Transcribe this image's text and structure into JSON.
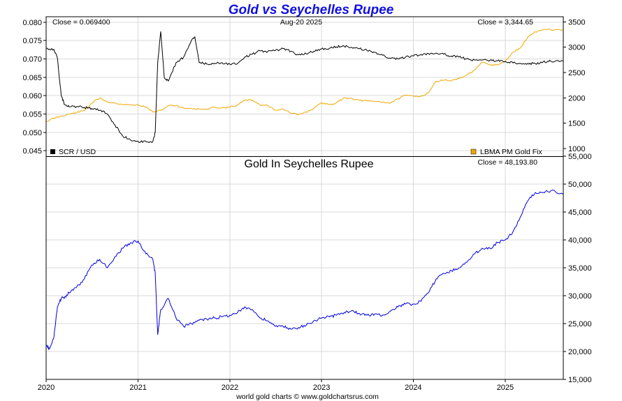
{
  "chart_data": [
    {
      "type": "line",
      "title": "Gold vs Seychelles Rupee",
      "date_label": "Aug-20  2025",
      "close_left": "Close = 0.069400",
      "close_right": "Close = 3,344.65",
      "x_tick_labels": [
        "2020",
        "2021",
        "2022",
        "2023",
        "2024",
        "2025"
      ],
      "y_left_ticks": [
        "0.080",
        "0.075",
        "0.070",
        "0.065",
        "0.060",
        "0.055",
        "0.050",
        "0.045"
      ],
      "y_left_lim": [
        0.0435,
        0.0815
      ],
      "y_right_ticks": [
        "3500",
        "3000",
        "2500",
        "2000",
        "1500",
        "1000"
      ],
      "y_right_lim": [
        850,
        3600
      ],
      "x_range": [
        "2020-01-01",
        "2025-08-20"
      ],
      "grid": true,
      "legend": [
        {
          "name": "SCR / USD",
          "color": "#000000",
          "position": "bottom-left"
        },
        {
          "name": "LBMA PM Gold Fix",
          "color": "#f0a800",
          "position": "bottom-right"
        }
      ],
      "series": [
        {
          "name": "SCR / USD",
          "axis": "left",
          "color": "#000000",
          "x": [
            "2020-01-01",
            "2020-02-01",
            "2020-02-15",
            "2020-03-01",
            "2020-03-15",
            "2020-04-01",
            "2020-05-01",
            "2020-06-01",
            "2020-07-01",
            "2020-08-01",
            "2020-09-01",
            "2020-10-01",
            "2020-11-01",
            "2020-12-01",
            "2021-01-01",
            "2021-02-01",
            "2021-03-01",
            "2021-03-10",
            "2021-03-20",
            "2021-04-01",
            "2021-04-15",
            "2021-05-01",
            "2021-06-01",
            "2021-07-01",
            "2021-08-01",
            "2021-08-15",
            "2021-09-01",
            "2021-10-01",
            "2021-11-01",
            "2021-12-01",
            "2022-01-01",
            "2022-02-01",
            "2022-03-01",
            "2022-04-01",
            "2022-05-01",
            "2022-06-01",
            "2022-07-01",
            "2022-08-01",
            "2022-09-01",
            "2022-10-01",
            "2022-11-01",
            "2022-12-01",
            "2023-01-01",
            "2023-02-01",
            "2023-03-01",
            "2023-04-01",
            "2023-05-01",
            "2023-06-01",
            "2023-07-01",
            "2023-08-01",
            "2023-09-01",
            "2023-10-01",
            "2023-11-01",
            "2023-12-01",
            "2024-01-01",
            "2024-02-01",
            "2024-03-01",
            "2024-04-01",
            "2024-05-01",
            "2024-06-01",
            "2024-07-01",
            "2024-08-01",
            "2024-09-01",
            "2024-10-01",
            "2024-11-01",
            "2024-12-01",
            "2025-01-01",
            "2025-02-01",
            "2025-03-01",
            "2025-04-01",
            "2025-05-01",
            "2025-06-01",
            "2025-07-01",
            "2025-08-20"
          ],
          "values": [
            0.0729,
            0.0726,
            0.0701,
            0.06,
            0.0575,
            0.057,
            0.057,
            0.0568,
            0.0565,
            0.056,
            0.055,
            0.052,
            0.049,
            0.048,
            0.0475,
            0.0475,
            0.0475,
            0.05,
            0.069,
            0.0775,
            0.065,
            0.064,
            0.069,
            0.0705,
            0.075,
            0.076,
            0.069,
            0.0686,
            0.0688,
            0.069,
            0.0686,
            0.0688,
            0.0705,
            0.0713,
            0.0722,
            0.072,
            0.0723,
            0.0728,
            0.0721,
            0.0711,
            0.0714,
            0.0721,
            0.0727,
            0.0729,
            0.0733,
            0.0735,
            0.0732,
            0.0728,
            0.0723,
            0.0718,
            0.071,
            0.0702,
            0.07,
            0.0705,
            0.0708,
            0.0712,
            0.0715,
            0.0716,
            0.0713,
            0.0708,
            0.0705,
            0.07,
            0.0697,
            0.0697,
            0.0696,
            0.0695,
            0.0693,
            0.0689,
            0.0688,
            0.0688,
            0.0687,
            0.0692,
            0.0694,
            0.0694
          ]
        },
        {
          "name": "LBMA PM Gold Fix",
          "axis": "right",
          "color": "#f0a800",
          "x": [
            "2020-01-01",
            "2020-02-01",
            "2020-03-01",
            "2020-04-01",
            "2020-05-01",
            "2020-06-01",
            "2020-07-01",
            "2020-08-01",
            "2020-09-01",
            "2020-10-01",
            "2020-11-01",
            "2020-12-01",
            "2021-01-01",
            "2021-02-01",
            "2021-03-01",
            "2021-04-01",
            "2021-05-01",
            "2021-06-01",
            "2021-07-01",
            "2021-08-01",
            "2021-09-01",
            "2021-10-01",
            "2021-11-01",
            "2021-12-01",
            "2022-01-01",
            "2022-02-01",
            "2022-03-01",
            "2022-04-01",
            "2022-05-01",
            "2022-06-01",
            "2022-07-01",
            "2022-08-01",
            "2022-09-01",
            "2022-10-01",
            "2022-11-01",
            "2022-12-01",
            "2023-01-01",
            "2023-02-01",
            "2023-03-01",
            "2023-04-01",
            "2023-05-01",
            "2023-06-01",
            "2023-07-01",
            "2023-08-01",
            "2023-09-01",
            "2023-10-01",
            "2023-11-01",
            "2023-12-01",
            "2024-01-01",
            "2024-02-01",
            "2024-03-01",
            "2024-04-01",
            "2024-05-01",
            "2024-06-01",
            "2024-07-01",
            "2024-08-01",
            "2024-09-01",
            "2024-10-01",
            "2024-11-01",
            "2024-12-01",
            "2025-01-01",
            "2025-02-01",
            "2025-03-01",
            "2025-04-01",
            "2025-05-01",
            "2025-06-01",
            "2025-07-01",
            "2025-08-20"
          ],
          "values": [
            1530,
            1600,
            1640,
            1680,
            1710,
            1750,
            1900,
            2000,
            1920,
            1900,
            1870,
            1860,
            1860,
            1820,
            1720,
            1750,
            1850,
            1850,
            1800,
            1790,
            1780,
            1770,
            1820,
            1800,
            1820,
            1860,
            1950,
            1960,
            1860,
            1850,
            1760,
            1780,
            1700,
            1670,
            1720,
            1790,
            1900,
            1870,
            1900,
            2000,
            1990,
            1950,
            1940,
            1930,
            1920,
            1900,
            1980,
            2050,
            2040,
            2030,
            2100,
            2330,
            2350,
            2340,
            2380,
            2450,
            2550,
            2700,
            2650,
            2650,
            2720,
            2900,
            2980,
            3200,
            3300,
            3350,
            3340,
            3345
          ]
        }
      ]
    },
    {
      "type": "line",
      "title": "Gold In Seychelles Rupee",
      "close_right": "Close = 48,193.80",
      "x_tick_labels": [
        "2020",
        "2021",
        "2022",
        "2023",
        "2024",
        "2025"
      ],
      "y_ticks": [
        "55,000",
        "50,000",
        "45,000",
        "40,000",
        "35,000",
        "30,000",
        "25,000",
        "20,000",
        "15,000"
      ],
      "ylim": [
        15000,
        55000
      ],
      "x_range": [
        "2020-01-01",
        "2025-08-20"
      ],
      "grid": true,
      "series": [
        {
          "name": "Gold In Seychelles Rupee",
          "color": "#0000dd",
          "x": [
            "2020-01-01",
            "2020-01-15",
            "2020-02-01",
            "2020-02-15",
            "2020-03-01",
            "2020-03-15",
            "2020-04-01",
            "2020-05-01",
            "2020-06-01",
            "2020-07-01",
            "2020-08-01",
            "2020-09-01",
            "2020-10-01",
            "2020-11-01",
            "2020-12-01",
            "2021-01-01",
            "2021-02-01",
            "2021-03-01",
            "2021-03-10",
            "2021-03-20",
            "2021-04-01",
            "2021-05-01",
            "2021-06-01",
            "2021-07-01",
            "2021-08-01",
            "2021-09-01",
            "2021-10-01",
            "2021-11-01",
            "2021-12-01",
            "2022-01-01",
            "2022-02-01",
            "2022-03-01",
            "2022-04-01",
            "2022-05-01",
            "2022-06-01",
            "2022-07-01",
            "2022-08-01",
            "2022-09-01",
            "2022-10-01",
            "2022-11-01",
            "2022-12-01",
            "2023-01-01",
            "2023-02-01",
            "2023-03-01",
            "2023-04-01",
            "2023-05-01",
            "2023-06-01",
            "2023-07-01",
            "2023-08-01",
            "2023-09-01",
            "2023-10-01",
            "2023-11-01",
            "2023-12-01",
            "2024-01-01",
            "2024-02-01",
            "2024-03-01",
            "2024-04-01",
            "2024-05-01",
            "2024-06-01",
            "2024-07-01",
            "2024-08-01",
            "2024-09-01",
            "2024-10-01",
            "2024-11-01",
            "2024-12-01",
            "2025-01-01",
            "2025-02-01",
            "2025-03-01",
            "2025-04-01",
            "2025-05-01",
            "2025-06-01",
            "2025-07-01",
            "2025-08-20"
          ],
          "values": [
            21000,
            20500,
            22500,
            28000,
            29500,
            29800,
            30500,
            31500,
            33000,
            35500,
            36500,
            35000,
            37000,
            38500,
            39500,
            39800,
            37500,
            36500,
            34000,
            23000,
            27500,
            29500,
            26000,
            24500,
            25000,
            25600,
            25800,
            26000,
            26200,
            26500,
            27000,
            28000,
            27500,
            26000,
            25500,
            24500,
            24500,
            24000,
            24300,
            24700,
            25500,
            26000,
            26200,
            26500,
            27000,
            27300,
            26800,
            26500,
            26700,
            26500,
            27200,
            28000,
            28500,
            28500,
            29000,
            30500,
            33000,
            34000,
            34500,
            35000,
            36000,
            37500,
            38500,
            38500,
            39500,
            40000,
            41500,
            44000,
            47000,
            48500,
            48500,
            48800,
            48193.8
          ]
        }
      ]
    }
  ],
  "footer": "world gold charts © www.goldchartsrus.com"
}
